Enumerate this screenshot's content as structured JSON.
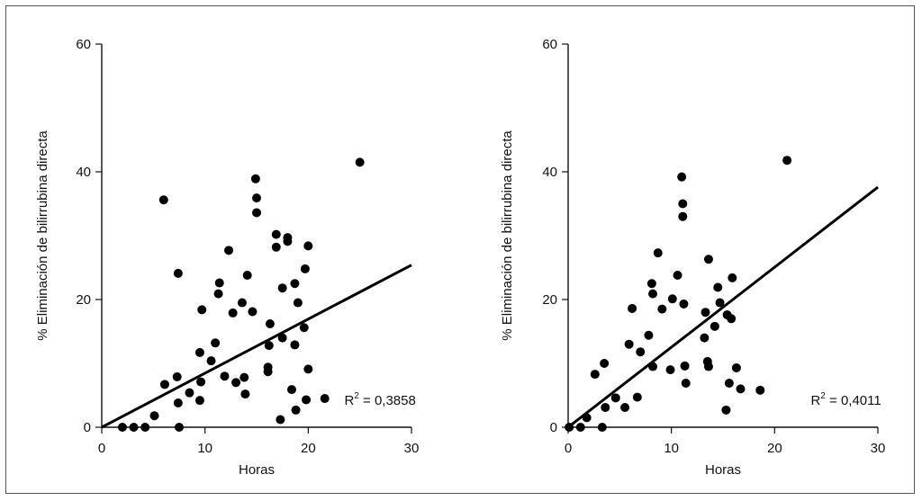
{
  "chart_data": [
    {
      "type": "scatter",
      "xlabel": "Horas",
      "ylabel": "% Eliminación de bilirrubina directa",
      "xlim": [
        0,
        30
      ],
      "ylim": [
        0,
        60
      ],
      "xticks": [
        "0",
        "10",
        "20",
        "30"
      ],
      "yticks": [
        "0",
        "20",
        "40",
        "60"
      ],
      "annotation": {
        "label": "R",
        "superscript": "2",
        "value": " = 0,3858"
      },
      "trendline": {
        "x": [
          0,
          30
        ],
        "y": [
          0,
          25.4
        ]
      },
      "points": [
        {
          "x": 2,
          "y": 0
        },
        {
          "x": 3.1,
          "y": 0
        },
        {
          "x": 4.2,
          "y": 0
        },
        {
          "x": 7.5,
          "y": 0
        },
        {
          "x": 5.1,
          "y": 1.8
        },
        {
          "x": 6.1,
          "y": 6.7
        },
        {
          "x": 7.4,
          "y": 3.8
        },
        {
          "x": 7.3,
          "y": 7.9
        },
        {
          "x": 6,
          "y": 35.6
        },
        {
          "x": 7.4,
          "y": 24.1
        },
        {
          "x": 8.5,
          "y": 5.4
        },
        {
          "x": 9.5,
          "y": 4.2
        },
        {
          "x": 9.6,
          "y": 7.1
        },
        {
          "x": 9.5,
          "y": 11.7
        },
        {
          "x": 9.7,
          "y": 18.4
        },
        {
          "x": 10.6,
          "y": 10.4
        },
        {
          "x": 11,
          "y": 13.2
        },
        {
          "x": 11.3,
          "y": 20.9
        },
        {
          "x": 11.4,
          "y": 22.6
        },
        {
          "x": 11.9,
          "y": 8
        },
        {
          "x": 12.3,
          "y": 27.7
        },
        {
          "x": 12.7,
          "y": 17.9
        },
        {
          "x": 13,
          "y": 7
        },
        {
          "x": 13.6,
          "y": 19.5
        },
        {
          "x": 13.8,
          "y": 7.8
        },
        {
          "x": 13.9,
          "y": 5.2
        },
        {
          "x": 14.1,
          "y": 23.8
        },
        {
          "x": 14.6,
          "y": 18.1
        },
        {
          "x": 15,
          "y": 33.6
        },
        {
          "x": 15,
          "y": 35.9
        },
        {
          "x": 14.9,
          "y": 38.9
        },
        {
          "x": 16.1,
          "y": 8.7
        },
        {
          "x": 16.1,
          "y": 9.4
        },
        {
          "x": 16.2,
          "y": 12.8
        },
        {
          "x": 16.3,
          "y": 16.2
        },
        {
          "x": 16.9,
          "y": 28.2
        },
        {
          "x": 16.9,
          "y": 30.2
        },
        {
          "x": 17.3,
          "y": 1.2
        },
        {
          "x": 17.5,
          "y": 14
        },
        {
          "x": 17.5,
          "y": 21.8
        },
        {
          "x": 18,
          "y": 29.1
        },
        {
          "x": 18,
          "y": 29.7
        },
        {
          "x": 18.4,
          "y": 5.9
        },
        {
          "x": 18.7,
          "y": 12.9
        },
        {
          "x": 18.7,
          "y": 22.5
        },
        {
          "x": 18.8,
          "y": 2.7
        },
        {
          "x": 19,
          "y": 19.5
        },
        {
          "x": 19.6,
          "y": 15.6
        },
        {
          "x": 19.7,
          "y": 24.8
        },
        {
          "x": 19.8,
          "y": 4.3
        },
        {
          "x": 20,
          "y": 9.1
        },
        {
          "x": 20,
          "y": 28.4
        },
        {
          "x": 21.6,
          "y": 4.5
        },
        {
          "x": 25,
          "y": 41.5
        }
      ]
    },
    {
      "type": "scatter",
      "xlabel": "Horas",
      "ylabel": "% Eliminación de bilirrubina directa",
      "xlim": [
        0,
        30
      ],
      "ylim": [
        0,
        60
      ],
      "xticks": [
        "0",
        "10",
        "20",
        "30"
      ],
      "yticks": [
        "0",
        "20",
        "40",
        "60"
      ],
      "annotation": {
        "label": "R",
        "superscript": "2",
        "value": " = 0,4011"
      },
      "trendline": {
        "x": [
          0,
          30
        ],
        "y": [
          0,
          37.6
        ]
      },
      "points": [
        {
          "x": 0.1,
          "y": 0
        },
        {
          "x": 1.2,
          "y": 0
        },
        {
          "x": 3.3,
          "y": 0
        },
        {
          "x": 1.8,
          "y": 1.5
        },
        {
          "x": 2.6,
          "y": 8.3
        },
        {
          "x": 3.5,
          "y": 10
        },
        {
          "x": 3.6,
          "y": 3.1
        },
        {
          "x": 4.6,
          "y": 4.6
        },
        {
          "x": 5.5,
          "y": 3.1
        },
        {
          "x": 5.9,
          "y": 13
        },
        {
          "x": 6.2,
          "y": 18.6
        },
        {
          "x": 6.7,
          "y": 4.7
        },
        {
          "x": 7,
          "y": 11.8
        },
        {
          "x": 7.8,
          "y": 14.4
        },
        {
          "x": 8.1,
          "y": 22.5
        },
        {
          "x": 8.2,
          "y": 20.9
        },
        {
          "x": 8.2,
          "y": 9.5
        },
        {
          "x": 8.7,
          "y": 27.3
        },
        {
          "x": 9.1,
          "y": 18.5
        },
        {
          "x": 9.9,
          "y": 9
        },
        {
          "x": 10.1,
          "y": 20.1
        },
        {
          "x": 10.6,
          "y": 23.8
        },
        {
          "x": 11,
          "y": 39.2
        },
        {
          "x": 11.1,
          "y": 35
        },
        {
          "x": 11.1,
          "y": 33
        },
        {
          "x": 11.2,
          "y": 19.3
        },
        {
          "x": 11.3,
          "y": 9.6
        },
        {
          "x": 11.4,
          "y": 6.9
        },
        {
          "x": 13.2,
          "y": 14
        },
        {
          "x": 13.3,
          "y": 18
        },
        {
          "x": 13.5,
          "y": 10.3
        },
        {
          "x": 13.6,
          "y": 9.5
        },
        {
          "x": 13.6,
          "y": 26.3
        },
        {
          "x": 14.2,
          "y": 15.8
        },
        {
          "x": 14.5,
          "y": 21.9
        },
        {
          "x": 14.7,
          "y": 19.5
        },
        {
          "x": 15.3,
          "y": 2.7
        },
        {
          "x": 15.4,
          "y": 17.6
        },
        {
          "x": 15.6,
          "y": 6.9
        },
        {
          "x": 15.8,
          "y": 17
        },
        {
          "x": 15.9,
          "y": 23.4
        },
        {
          "x": 16.3,
          "y": 9.3
        },
        {
          "x": 16.7,
          "y": 6
        },
        {
          "x": 18.6,
          "y": 5.8
        },
        {
          "x": 21.2,
          "y": 41.8
        }
      ]
    }
  ]
}
